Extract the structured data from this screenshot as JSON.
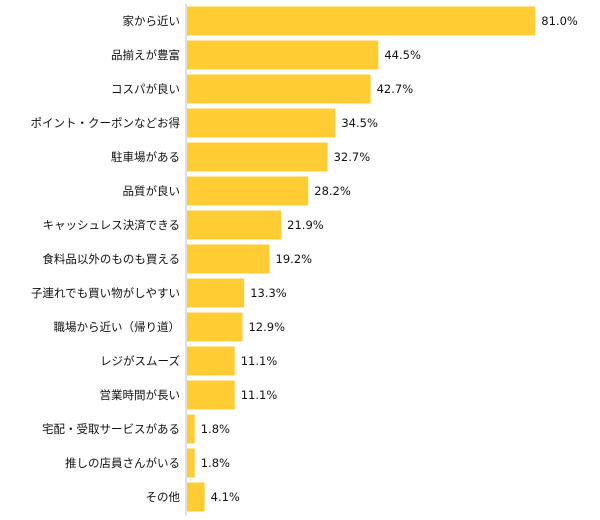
{
  "chart_data": {
    "type": "bar",
    "orientation": "horizontal",
    "categories": [
      "家から近い",
      "品揃えが豊富",
      "コスパが良い",
      "ポイント・クーポンなどお得",
      "駐車場がある",
      "品質が良い",
      "キャッシュレス決済できる",
      "食料品以外のものも買える",
      "子連れでも買い物がしやすい",
      "職場から近い（帰り道）",
      "レジがスムーズ",
      "営業時間が長い",
      "宅配・受取サービスがある",
      "推しの店員さんがいる",
      "その他"
    ],
    "values": [
      81.0,
      44.5,
      42.7,
      34.5,
      32.7,
      28.2,
      21.9,
      19.2,
      13.3,
      12.9,
      11.1,
      11.1,
      1.8,
      1.8,
      4.1
    ],
    "value_labels": [
      "81.0%",
      "44.5%",
      "42.7%",
      "34.5%",
      "32.7%",
      "28.2%",
      "21.9%",
      "19.2%",
      "13.3%",
      "12.9%",
      "11.1%",
      "11.1%",
      "1.8%",
      "1.8%",
      "4.1%"
    ],
    "xlim": [
      0,
      100
    ],
    "grid": false,
    "legend": "none",
    "colors": {
      "bar": "#FFCC33",
      "axis": "#bfbfbf",
      "text": "#111111"
    }
  }
}
